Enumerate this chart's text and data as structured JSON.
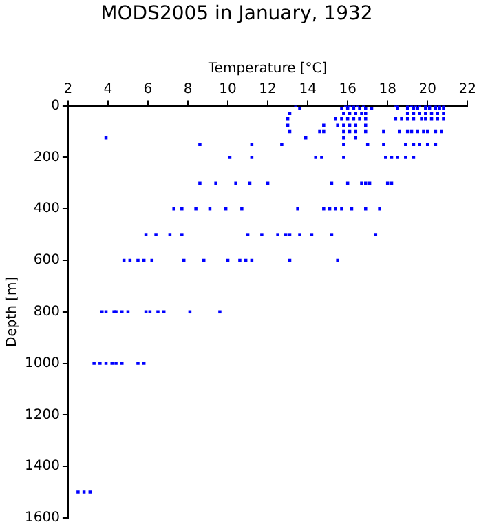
{
  "chart_data": {
    "type": "scatter",
    "title": "MODS2005 in January, 1932",
    "xlabel": "Temperature [°C]",
    "ylabel": "Depth [m]",
    "xlim": [
      2,
      22
    ],
    "xticks": [
      2,
      4,
      6,
      8,
      10,
      12,
      14,
      16,
      18,
      20,
      22
    ],
    "ylim": [
      1600,
      0
    ],
    "yticks": [
      0,
      200,
      400,
      600,
      800,
      1000,
      1200,
      1400,
      1600
    ],
    "grid": false,
    "legend": false,
    "marker": "square",
    "series": [
      {
        "color": "#0000ff",
        "x": [
          13.4,
          15.9,
          16.1,
          16.3,
          16.5,
          16.8,
          18.4,
          18.5,
          19.0,
          19.2,
          19.4,
          19.6,
          19.9,
          20.1,
          20.4,
          20.6,
          20.8,
          13.6,
          15.7,
          16.0,
          16.3,
          16.6,
          16.9,
          17.2,
          18.5,
          19.0,
          19.3,
          19.5,
          19.9,
          20.1,
          20.4,
          20.6,
          20.8,
          13.1,
          15.8,
          16.1,
          16.4,
          16.7,
          16.9,
          19.0,
          19.3,
          19.6,
          19.9,
          20.2,
          20.5,
          20.8,
          13.0,
          15.4,
          15.7,
          16.0,
          16.3,
          16.6,
          16.9,
          18.4,
          18.7,
          19.0,
          19.3,
          19.7,
          19.9,
          20.2,
          20.5,
          20.8,
          13.0,
          14.8,
          15.5,
          15.8,
          16.1,
          16.4,
          16.9,
          13.1,
          14.6,
          14.8,
          15.8,
          16.1,
          16.4,
          16.9,
          17.8,
          18.6,
          19.0,
          19.2,
          19.5,
          19.8,
          20.0,
          20.4,
          20.7,
          3.9,
          13.9,
          15.8,
          16.4,
          8.6,
          11.2,
          12.7,
          15.8,
          17.0,
          17.8,
          18.9,
          19.3,
          19.6,
          20.0,
          20.4,
          10.1,
          11.2,
          14.4,
          14.7,
          15.8,
          17.9,
          18.2,
          18.5,
          18.9,
          19.3,
          8.6,
          9.4,
          10.4,
          11.1,
          12.0,
          15.2,
          16.0,
          16.7,
          16.9,
          17.1,
          18.0,
          18.2,
          7.3,
          7.7,
          8.4,
          9.1,
          9.9,
          10.7,
          13.5,
          14.8,
          15.1,
          15.4,
          15.7,
          16.2,
          16.9,
          17.6,
          5.9,
          6.4,
          7.1,
          7.7,
          11.0,
          11.7,
          12.5,
          12.9,
          13.1,
          13.6,
          14.2,
          15.2,
          17.4,
          4.8,
          5.1,
          5.5,
          5.8,
          6.2,
          7.8,
          8.8,
          10.0,
          10.6,
          10.9,
          11.2,
          13.1,
          15.5,
          3.7,
          3.9,
          4.3,
          4.4,
          4.7,
          5.0,
          5.9,
          6.1,
          6.5,
          6.8,
          8.1,
          9.6,
          3.3,
          3.6,
          3.9,
          4.2,
          4.4,
          4.7,
          5.5,
          5.8,
          2.5,
          2.8,
          3.1
        ],
        "values": [
          0,
          0,
          0,
          0,
          0,
          0,
          0,
          0,
          0,
          0,
          0,
          0,
          0,
          0,
          0,
          0,
          0,
          10,
          10,
          10,
          10,
          10,
          10,
          10,
          10,
          10,
          10,
          10,
          10,
          10,
          10,
          10,
          10,
          30,
          30,
          30,
          30,
          30,
          30,
          30,
          30,
          30,
          30,
          30,
          30,
          30,
          50,
          50,
          50,
          50,
          50,
          50,
          50,
          50,
          50,
          50,
          50,
          50,
          50,
          50,
          50,
          50,
          75,
          75,
          75,
          75,
          75,
          75,
          75,
          100,
          100,
          100,
          100,
          100,
          100,
          100,
          100,
          100,
          100,
          100,
          100,
          100,
          100,
          100,
          100,
          125,
          125,
          125,
          125,
          150,
          150,
          150,
          150,
          150,
          150,
          150,
          150,
          150,
          150,
          150,
          200,
          200,
          200,
          200,
          200,
          200,
          200,
          200,
          200,
          200,
          300,
          300,
          300,
          300,
          300,
          300,
          300,
          300,
          300,
          300,
          300,
          300,
          400,
          400,
          400,
          400,
          400,
          400,
          400,
          400,
          400,
          400,
          400,
          400,
          400,
          400,
          500,
          500,
          500,
          500,
          500,
          500,
          500,
          500,
          500,
          500,
          500,
          500,
          500,
          600,
          600,
          600,
          600,
          600,
          600,
          600,
          600,
          600,
          600,
          600,
          600,
          600,
          800,
          800,
          800,
          800,
          800,
          800,
          800,
          800,
          800,
          800,
          800,
          800,
          1000,
          1000,
          1000,
          1000,
          1000,
          1000,
          1000,
          1000,
          1500,
          1500,
          1500
        ]
      }
    ]
  }
}
